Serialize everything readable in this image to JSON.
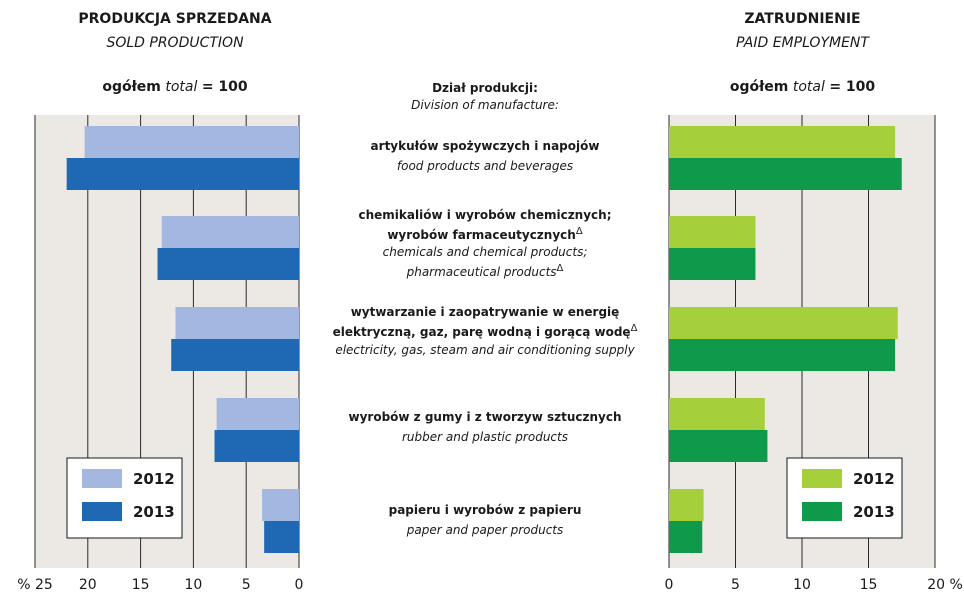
{
  "left_panel": {
    "title": "PRODUKCJA SPRZEDANA",
    "subtitle": "SOLD PRODUCTION",
    "total_bold": "ogółem",
    "total_italic": "total",
    "total_value": "= 100"
  },
  "right_panel": {
    "title": "ZATRUDNIENIE",
    "subtitle": "PAID EMPLOYMENT",
    "total_bold": "ogółem",
    "total_italic": "total",
    "total_value": "= 100"
  },
  "center": {
    "header_pl": "Dział produkcji:",
    "header_en": "Division of manufacture:"
  },
  "colors": {
    "left_2012": "#a3b7e0",
    "left_2013": "#1f68b4",
    "right_2012": "#a6cf3c",
    "right_2013": "#0f9a4b",
    "plot_bg": "#ece8e4"
  },
  "chart_data": [
    {
      "type": "bar",
      "orientation": "horizontal-reversed",
      "categories": [
        "artykułów spożywczych i napojów",
        "chemikaliów i wyrobów chemicznych; wyrobów farmaceutycznych",
        "wytwarzanie i zaopatrywanie w energię elektryczną, gaz, parę wodną i gorącą wodę",
        "wyrobów z gumy i z tworzyw sztucznych",
        "papieru i wyrobów z papieru"
      ],
      "series": [
        {
          "name": "2012",
          "values": [
            20.3,
            13.0,
            11.7,
            7.8,
            3.5
          ]
        },
        {
          "name": "2013",
          "values": [
            22.0,
            13.4,
            12.1,
            8.0,
            3.3
          ]
        }
      ],
      "xlim": [
        0,
        25
      ],
      "xticks": [
        "% 25",
        "20",
        "15",
        "10",
        "5",
        "0"
      ],
      "legend": [
        "2012",
        "2013"
      ]
    },
    {
      "type": "bar",
      "orientation": "horizontal",
      "categories": [
        "artykułów spożywczych i napojów",
        "chemikaliów i wyrobów chemicznych; wyrobów farmaceutycznych",
        "wytwarzanie i zaopatrywanie w energię elektryczną, gaz, parę wodną i gorącą wodę",
        "wyrobów z gumy i z tworzyw sztucznych",
        "papieru i wyrobów z papieru"
      ],
      "series": [
        {
          "name": "2012",
          "values": [
            17.0,
            6.5,
            17.2,
            7.2,
            2.6
          ]
        },
        {
          "name": "2013",
          "values": [
            17.5,
            6.5,
            17.0,
            7.4,
            2.5
          ]
        }
      ],
      "xlim": [
        0,
        20
      ],
      "xticks": [
        "0",
        "5",
        "10",
        "15",
        "20 %"
      ],
      "legend": [
        "2012",
        "2013"
      ]
    }
  ],
  "divisions": [
    {
      "pl": [
        "artykułów spożywczych i napojów"
      ],
      "en": [
        "food products and beverages"
      ]
    },
    {
      "pl": [
        "chemikaliów i wyrobów chemicznych;",
        "wyrobów farmaceutycznych"
      ],
      "en": [
        "chemicals and chemical products;",
        "pharmaceutical products"
      ],
      "sup_pl": "Δ",
      "sup_en": "Δ"
    },
    {
      "pl": [
        "wytwarzanie i zaopatrywanie w energię",
        "elektryczną, gaz, parę wodną i gorącą wodę"
      ],
      "en": [
        "electricity, gas, steam and air conditioning supply"
      ],
      "sup_pl": "Δ"
    },
    {
      "pl": [
        "wyrobów z gumy i z tworzyw sztucznych"
      ],
      "en": [
        "rubber and plastic products"
      ]
    },
    {
      "pl": [
        "papieru i wyrobów z papieru"
      ],
      "en": [
        "paper and paper products"
      ]
    }
  ]
}
